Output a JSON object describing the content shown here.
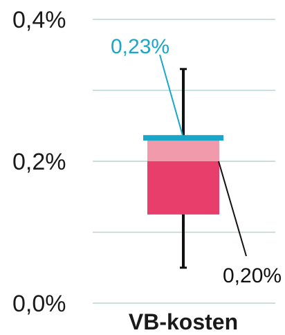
{
  "chart_data": {
    "type": "box",
    "categories": [
      "VB-kosten"
    ],
    "ylim": [
      0,
      0.4
    ],
    "y_ticks": [
      {
        "value": 0.0,
        "label": "0,0%"
      },
      {
        "value": 0.2,
        "label": "0,2%"
      },
      {
        "value": 0.4,
        "label": "0,4%"
      }
    ],
    "minor_gridlines": [
      0.1,
      0.3
    ],
    "grid": true,
    "boxes": [
      {
        "category": "VB-kosten",
        "whisker_low": 0.05,
        "q1": 0.125,
        "median": 0.2,
        "q3": 0.23,
        "whisker_high": 0.33,
        "highlight": 0.233
      }
    ],
    "annotations": [
      {
        "text": "0,23%",
        "value": 0.233,
        "color": "#1aa6c9"
      },
      {
        "text": "0,20%",
        "value": 0.2,
        "color": "#111111"
      }
    ],
    "colors": {
      "box_lower": "#e83e6c",
      "box_upper": "#f09aab",
      "highlight": "#1aa6c9",
      "whisker": "#111111",
      "grid": "#b9d3d1"
    }
  }
}
